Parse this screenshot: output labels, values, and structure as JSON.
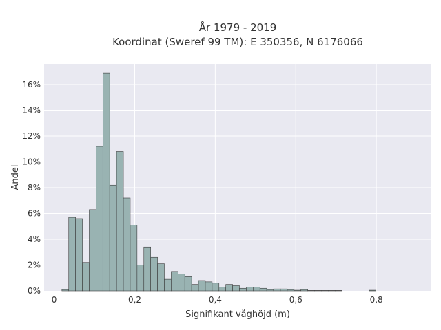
{
  "chart_data": {
    "type": "bar",
    "title": "År 1979 - 2019",
    "subtitle": "Koordinat (Sweref 99 TM): E 350356, N 6176066",
    "xlabel": "Signifikant våghöjd (m)",
    "ylabel": "Andel",
    "xlim": [
      -0.025,
      0.935
    ],
    "ylim": [
      0,
      0.176
    ],
    "x_ticks": [
      0,
      0.2,
      0.4,
      0.6,
      0.8
    ],
    "x_tick_labels": [
      "0",
      "0,2",
      "0,4",
      "0,6",
      "0,8"
    ],
    "y_ticks": [
      0,
      0.02,
      0.04,
      0.06,
      0.08,
      0.1,
      0.12,
      0.14,
      0.16
    ],
    "y_tick_labels": [
      "0%",
      "2%",
      "4%",
      "6%",
      "8%",
      "10%",
      "12%",
      "14%",
      "16%"
    ],
    "bin_width": 0.01696,
    "bin_start": 0.0192,
    "values": [
      0.001,
      0.057,
      0.056,
      0.022,
      0.063,
      0.112,
      0.169,
      0.082,
      0.108,
      0.072,
      0.051,
      0.02,
      0.034,
      0.026,
      0.021,
      0.009,
      0.015,
      0.013,
      0.011,
      0.005,
      0.008,
      0.007,
      0.006,
      0.003,
      0.005,
      0.004,
      0.002,
      0.003,
      0.003,
      0.002,
      0.001,
      0.0015,
      0.0015,
      0.001,
      0.0005,
      0.001,
      0.0003,
      0.0003,
      0.0003,
      0.0003,
      0.0003,
      0,
      0,
      0,
      0,
      0.0005
    ],
    "grid": true,
    "legend": "none",
    "colors": {
      "bar_fill": "#99b3b2",
      "bar_edge": "#3a3a3a",
      "plot_bg": "#e9e9f1",
      "grid": "#ffffff"
    }
  }
}
